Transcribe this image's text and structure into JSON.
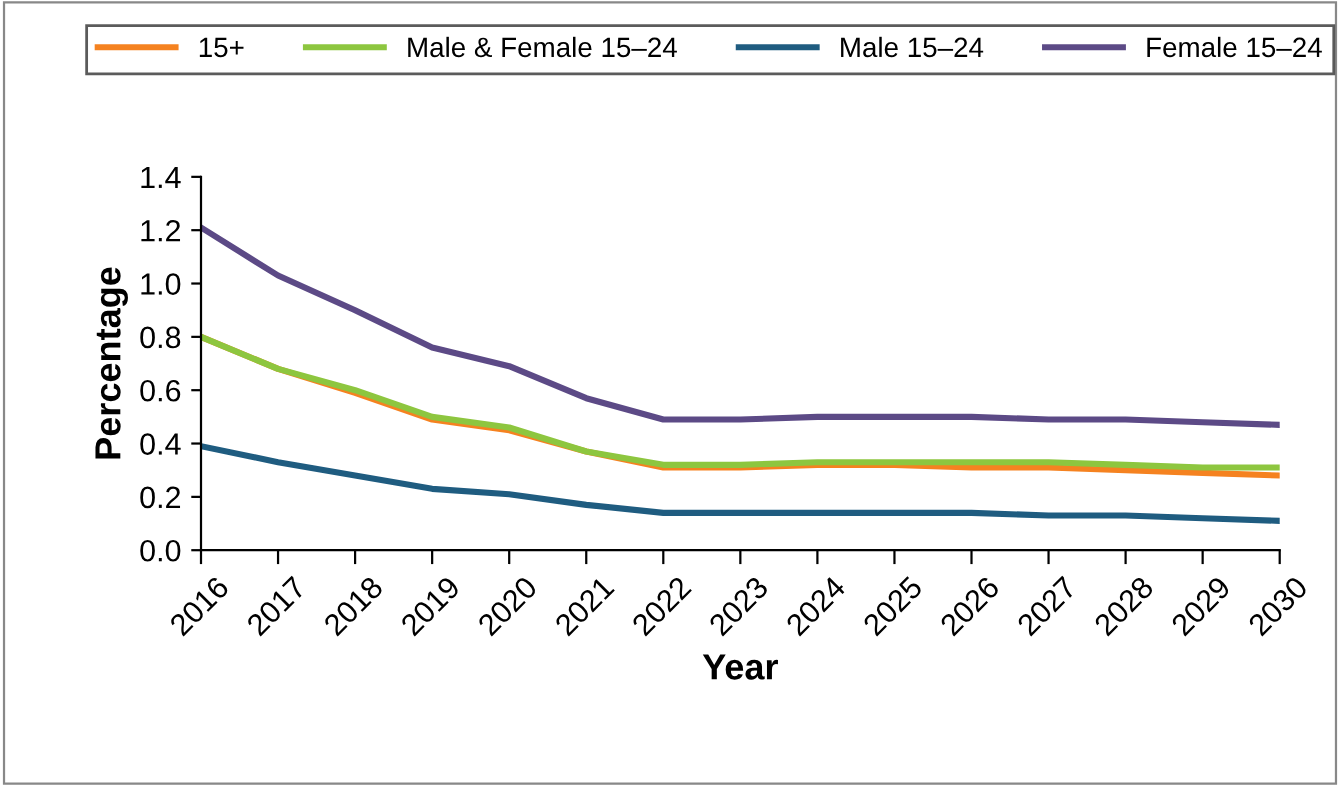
{
  "chart_data": {
    "type": "line",
    "xlabel": "Year",
    "ylabel": "Percentage",
    "categories": [
      "2016",
      "2017",
      "2018",
      "2019",
      "2020",
      "2021",
      "2022",
      "2023",
      "2024",
      "2025",
      "2026",
      "2027",
      "2028",
      "2029",
      "2030"
    ],
    "series": [
      {
        "name": "15+",
        "color": "#f58220",
        "values": [
          0.8,
          0.68,
          0.59,
          0.49,
          0.45,
          0.37,
          0.31,
          0.31,
          0.32,
          0.32,
          0.31,
          0.31,
          0.3,
          0.29,
          0.28
        ]
      },
      {
        "name": "Male & Female 15–24",
        "color": "#8dc63f",
        "values": [
          0.8,
          0.68,
          0.6,
          0.5,
          0.46,
          0.37,
          0.32,
          0.32,
          0.33,
          0.33,
          0.33,
          0.33,
          0.32,
          0.31,
          0.31
        ]
      },
      {
        "name": "Male 15–24",
        "color": "#1f5c80",
        "values": [
          0.39,
          0.33,
          0.28,
          0.23,
          0.21,
          0.17,
          0.14,
          0.14,
          0.14,
          0.14,
          0.14,
          0.13,
          0.13,
          0.12,
          0.11
        ]
      },
      {
        "name": "Female 15–24",
        "color": "#5c4a86",
        "values": [
          1.21,
          1.03,
          0.9,
          0.76,
          0.69,
          0.57,
          0.49,
          0.49,
          0.5,
          0.5,
          0.5,
          0.49,
          0.49,
          0.48,
          0.47
        ]
      }
    ],
    "ylim": [
      0,
      1.4
    ],
    "yticks": [
      {
        "value": 0,
        "label": "0.0"
      },
      0.2,
      0.4,
      0.6,
      0.8,
      {
        "value": 1,
        "label": "1.0"
      },
      1.2,
      1.4
    ],
    "grid": false,
    "legend": "top",
    "marker": "none",
    "line_style": "solid"
  }
}
